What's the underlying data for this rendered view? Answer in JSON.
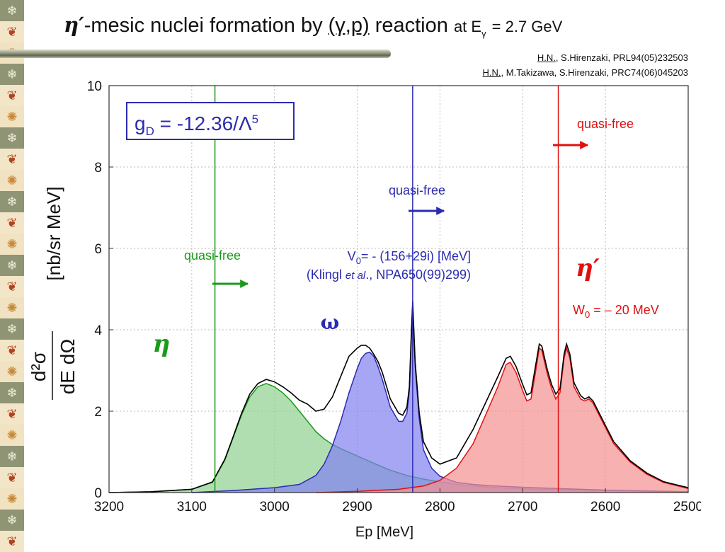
{
  "title": {
    "eta_prime": "η′",
    "main": "-mesic nuclei formation by",
    "reaction": "(γ,p)",
    "reaction_word": "reaction",
    "energy": "at E",
    "energy_sub": "γ",
    "energy_value": "= 2.7 GeV"
  },
  "references": [
    {
      "author": "H.N.",
      "rest": ", S.Hirenzaki, PRL94(05)232503"
    },
    {
      "author": "H.N.",
      "rest": ", M.Takizawa, S.Hirenzaki, PRC74(06)045203"
    }
  ],
  "side_icons": [
    "snowflake-icon",
    "leaf-icon",
    "sun-icon",
    "snowflake-icon",
    "leaf-icon",
    "sun-icon",
    "snowflake-icon",
    "leaf-icon",
    "sun-icon",
    "snowflake-icon",
    "leaf-icon",
    "sun-icon",
    "snowflake-icon",
    "leaf-icon",
    "sun-icon",
    "snowflake-icon",
    "leaf-icon",
    "sun-icon",
    "snowflake-icon",
    "leaf-icon",
    "sun-icon",
    "snowflake-icon",
    "leaf-icon",
    "sun-icon",
    "snowflake-icon",
    "leaf-icon"
  ],
  "colors": {
    "eta": "#1a9a1a",
    "omega": "#2b2bb0",
    "etaprime": "#e01010",
    "total": "#000000",
    "accent_title_bar": "#7b8166"
  },
  "annotations": {
    "coupling": "g",
    "coupling_sub": "D",
    "coupling_value": " = -12.36/Λ",
    "coupling_sup": "5",
    "omega_potential": "V",
    "omega_potential_sub": "0",
    "omega_potential_value": "= - (156+29i) [MeV]",
    "omega_ref_a": "(Klingl ",
    "omega_ref_et": "et al",
    "omega_ref_b": "., NPA650(99)299)",
    "quasi_free_eta": "quasi-free",
    "quasi_free_omega": "quasi-free",
    "quasi_free_etaprime": "quasi-free",
    "eta_label": "η",
    "omega_label": "ω",
    "etaprime_label": "η′",
    "etaprime_width": "W",
    "etaprime_width_sub": "0",
    "etaprime_width_value": " = – 20 MeV"
  },
  "chart_data": {
    "type": "area",
    "xlabel": "Ep [MeV]",
    "ylabel_units": "[nb/sr MeV]",
    "ylabel_numerator": "d²σ",
    "ylabel_denominator": "dE dΩ",
    "x_reversed": true,
    "xlim": [
      3200,
      2500
    ],
    "ylim": [
      0,
      10
    ],
    "x_ticks": [
      3200,
      3100,
      3000,
      2900,
      2800,
      2700,
      2600,
      2500
    ],
    "y_ticks": [
      0,
      2,
      4,
      6,
      8,
      10
    ],
    "grid": true,
    "thresholds": [
      {
        "name": "eta",
        "x": 3072
      },
      {
        "name": "omega",
        "x": 2833
      },
      {
        "name": "etaprime",
        "x": 2657
      }
    ],
    "series": [
      {
        "name": "η",
        "fill": true,
        "x": [
          3200,
          3150,
          3100,
          3075,
          3060,
          3050,
          3040,
          3030,
          3020,
          3010,
          3000,
          2990,
          2980,
          2970,
          2960,
          2950,
          2940,
          2930,
          2920,
          2900,
          2880,
          2860,
          2840,
          2820,
          2800,
          2780,
          2760,
          2740,
          2720,
          2700,
          2660,
          2600,
          2550,
          2500
        ],
        "y": [
          0,
          0.02,
          0.08,
          0.25,
          0.8,
          1.35,
          1.9,
          2.35,
          2.6,
          2.68,
          2.6,
          2.45,
          2.25,
          2.0,
          1.75,
          1.5,
          1.32,
          1.18,
          1.08,
          0.9,
          0.72,
          0.55,
          0.42,
          0.33,
          0.26,
          0.2,
          0.16,
          0.13,
          0.11,
          0.09,
          0.07,
          0.05,
          0.03,
          0.02
        ]
      },
      {
        "name": "ω",
        "fill": true,
        "x": [
          3100,
          3050,
          3000,
          2970,
          2950,
          2940,
          2930,
          2920,
          2910,
          2900,
          2895,
          2890,
          2885,
          2880,
          2875,
          2870,
          2860,
          2850,
          2845,
          2840,
          2837,
          2835,
          2833,
          2830,
          2825,
          2820,
          2810,
          2800,
          2780,
          2760,
          2740,
          2720,
          2700,
          2660,
          2600,
          2500
        ],
        "y": [
          0,
          0.05,
          0.12,
          0.2,
          0.42,
          0.7,
          1.15,
          1.75,
          2.45,
          3.05,
          3.3,
          3.42,
          3.45,
          3.35,
          3.1,
          2.8,
          2.1,
          1.75,
          1.75,
          1.95,
          2.5,
          3.6,
          4.6,
          3.1,
          1.8,
          1.05,
          0.6,
          0.4,
          0.25,
          0.2,
          0.17,
          0.15,
          0.13,
          0.1,
          0.06,
          0.02
        ]
      },
      {
        "name": "η′",
        "fill": true,
        "x": [
          2950,
          2900,
          2850,
          2820,
          2800,
          2780,
          2760,
          2745,
          2730,
          2720,
          2715,
          2708,
          2700,
          2695,
          2690,
          2685,
          2680,
          2677,
          2670,
          2665,
          2660,
          2655,
          2650,
          2647,
          2643,
          2638,
          2630,
          2625,
          2620,
          2615,
          2610,
          2600,
          2590,
          2570,
          2550,
          2530,
          2500
        ],
        "y": [
          0,
          0.03,
          0.08,
          0.16,
          0.3,
          0.6,
          1.2,
          1.9,
          2.6,
          3.15,
          3.2,
          2.95,
          2.5,
          2.25,
          2.3,
          2.9,
          3.55,
          3.5,
          2.9,
          2.55,
          2.3,
          2.45,
          3.3,
          3.55,
          3.3,
          2.6,
          2.3,
          2.25,
          2.3,
          2.2,
          2.0,
          1.6,
          1.2,
          0.75,
          0.45,
          0.25,
          0.1
        ]
      },
      {
        "name": "total",
        "x": [
          3200,
          3150,
          3100,
          3075,
          3060,
          3050,
          3040,
          3030,
          3020,
          3010,
          3000,
          2990,
          2980,
          2970,
          2960,
          2950,
          2940,
          2930,
          2920,
          2910,
          2900,
          2895,
          2890,
          2885,
          2880,
          2875,
          2870,
          2860,
          2850,
          2845,
          2840,
          2837,
          2835,
          2833,
          2830,
          2825,
          2820,
          2810,
          2800,
          2780,
          2760,
          2745,
          2730,
          2720,
          2715,
          2708,
          2700,
          2695,
          2690,
          2685,
          2680,
          2677,
          2670,
          2665,
          2660,
          2655,
          2650,
          2647,
          2643,
          2638,
          2630,
          2625,
          2620,
          2615,
          2610,
          2600,
          2590,
          2570,
          2550,
          2530,
          2500
        ],
        "y": [
          0,
          0.02,
          0.08,
          0.26,
          0.82,
          1.37,
          1.94,
          2.42,
          2.68,
          2.78,
          2.72,
          2.6,
          2.45,
          2.27,
          2.17,
          2.0,
          2.05,
          2.35,
          2.85,
          3.35,
          3.55,
          3.62,
          3.62,
          3.55,
          3.4,
          3.22,
          2.97,
          2.3,
          1.95,
          1.9,
          2.1,
          2.6,
          3.7,
          4.7,
          3.2,
          1.95,
          1.25,
          0.85,
          0.7,
          0.85,
          1.55,
          2.2,
          2.85,
          3.3,
          3.35,
          3.1,
          2.65,
          2.4,
          2.45,
          3.05,
          3.65,
          3.6,
          3.0,
          2.65,
          2.42,
          2.55,
          3.4,
          3.65,
          3.4,
          2.7,
          2.38,
          2.3,
          2.35,
          2.25,
          2.05,
          1.65,
          1.25,
          0.78,
          0.48,
          0.27,
          0.12
        ]
      }
    ]
  }
}
